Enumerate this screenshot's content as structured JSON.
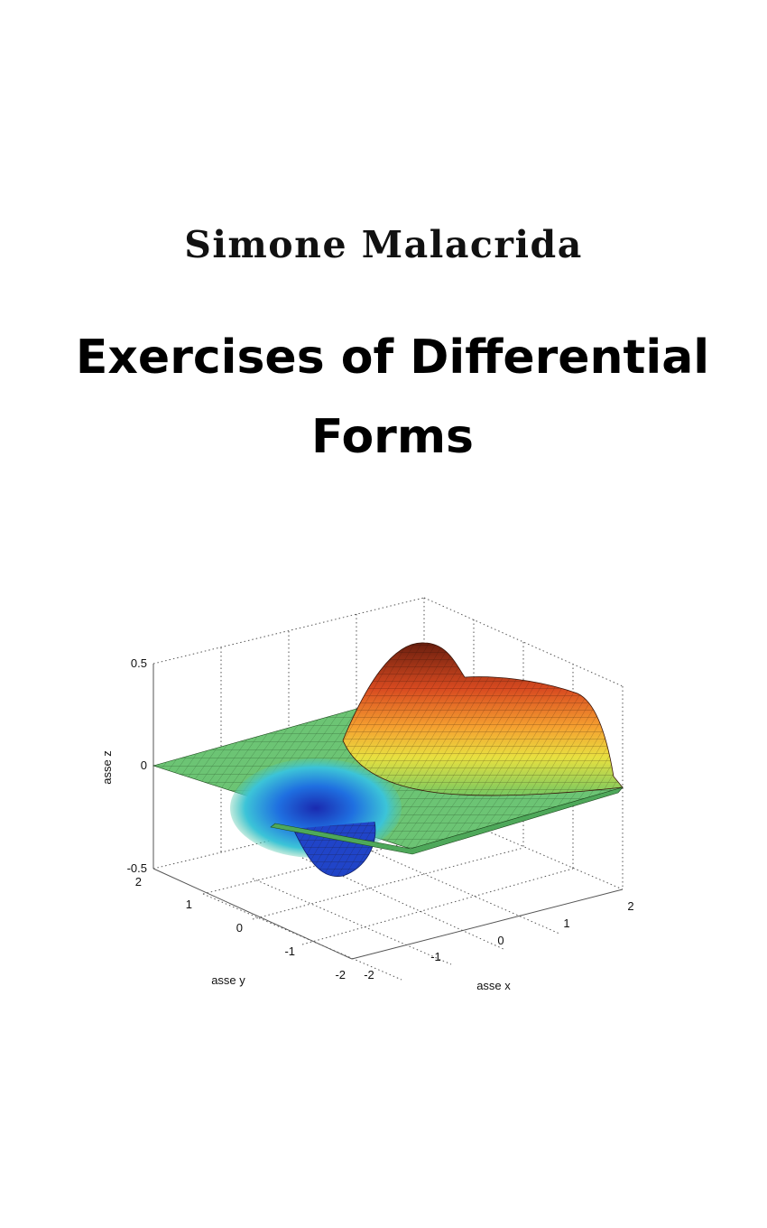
{
  "cover": {
    "author": "Simone Malacrida",
    "title": "Exercises of Differential Forms"
  },
  "plot": {
    "z_label": "asse z",
    "y_label": "asse y",
    "x_label": "asse x",
    "z_ticks": [
      "0.5",
      "0",
      "-0.5"
    ],
    "y_ticks": [
      "2",
      "1",
      "0",
      "-1",
      "-2"
    ],
    "x_ticks": [
      "-2",
      "-1",
      "0",
      "1",
      "2"
    ],
    "colormap": [
      "#1f3fc0",
      "#2a8fe0",
      "#3fd0d8",
      "#70d070",
      "#e0e040",
      "#f09030",
      "#d04020",
      "#7a2010"
    ]
  }
}
